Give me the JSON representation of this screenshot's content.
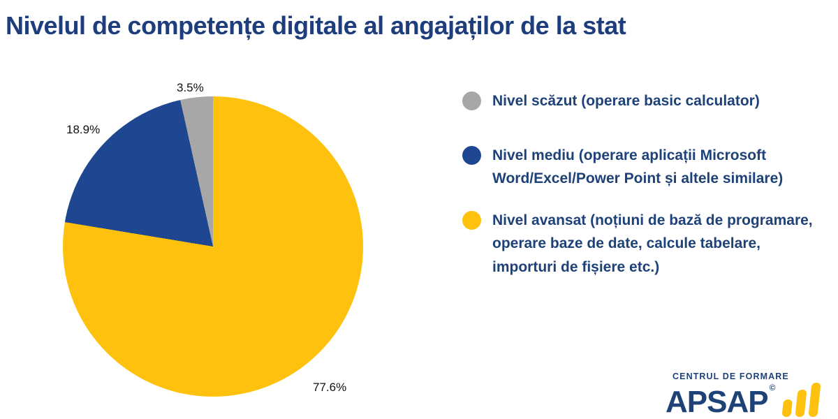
{
  "page": {
    "title": "Nivelul de competențe digitale al angajaților de la stat"
  },
  "colors": {
    "background": "#ffffff",
    "title_text": "#1e3d7c",
    "legend_text": "#1e4178",
    "pct_label_text": "#111111",
    "logo_blue": "#1e4178",
    "logo_yellow": "#fec20e"
  },
  "chart_data": {
    "type": "pie",
    "title": "Nivelul de competențe digitale al angajaților de la stat",
    "slices": [
      {
        "label": "Nivel scăzut (operare basic calculator)",
        "value": 3.5,
        "display": "3.5%",
        "color": "#a7a7a7"
      },
      {
        "label": "Nivel mediu (operare aplicații Microsoft Word/Excel/Power Point și altele similare)",
        "value": 18.9,
        "display": "18.9%",
        "color": "#1f4690"
      },
      {
        "label": "Nivel avansat (noțiuni de bază de programare, operare baze de date, calcule tabelare, importuri de fișiere etc.)",
        "value": 77.6,
        "display": "77.6%",
        "color": "#fec20e"
      }
    ],
    "draw_order": [
      2,
      1,
      0
    ],
    "start_angle_deg": 0,
    "direction": "clockwise",
    "legend_position": "right",
    "total": 100.0
  },
  "logo": {
    "tagline": "CENTRUL DE FORMARE",
    "name": "APSAP",
    "copyright": "©",
    "icon": "bar-chart-icon"
  }
}
